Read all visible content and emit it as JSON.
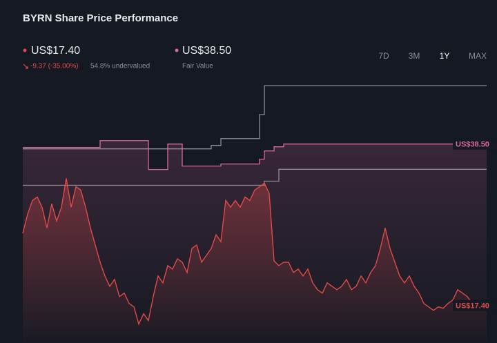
{
  "header": {
    "title": "BYRN Share Price Performance",
    "price": "US$17.40",
    "change": "-9.37 (-35.00%)",
    "valuation": "54.8% undervalued",
    "fair_value": "US$38.50",
    "fair_value_label": "Fair Value",
    "ranges": [
      "7D",
      "3M",
      "1Y",
      "MAX"
    ],
    "active_range": "1Y"
  },
  "chart_data": {
    "type": "line",
    "ylim": [
      12.5,
      46.5
    ],
    "series": [
      {
        "color": "#8a8f98",
        "style": "step",
        "values": [
          37.87,
          37.87,
          37.87,
          37.87,
          37.87,
          37.87,
          37.87,
          37.87,
          37.87,
          37.87,
          37.87,
          37.87,
          37.87,
          37.87,
          37.87,
          37.87,
          37.87,
          37.87,
          37.87,
          37.87,
          37.87,
          37.87,
          37.87,
          37.87,
          37.87,
          37.87,
          37.87,
          37.87,
          37.87,
          37.87,
          37.87,
          37.87,
          37.87,
          37.87,
          37.87,
          37.87,
          37.87,
          37.87,
          37.87,
          38.32,
          38.32,
          39.21,
          39.21,
          39.21,
          39.21,
          39.21,
          39.21,
          39.21,
          39.21,
          42.35,
          46.13,
          46.13,
          46.13,
          46.13,
          46.13,
          46.13,
          46.13,
          46.13,
          46.13,
          46.13,
          46.13,
          46.13,
          46.13,
          46.13,
          46.13,
          46.13,
          46.13,
          46.13,
          46.13,
          46.13,
          46.13,
          46.13,
          46.13,
          46.13,
          46.13,
          46.13,
          46.13,
          46.13,
          46.13,
          46.13,
          46.13,
          46.13,
          46.13,
          46.13,
          46.13,
          46.13,
          46.13,
          46.13,
          46.13,
          46.13,
          46.13,
          46.13,
          46.13,
          46.13,
          46.13,
          46.13,
          46.13
        ]
      },
      {
        "color": "#8a8f98",
        "style": "step",
        "values": [
          33.11,
          33.11,
          33.11,
          33.11,
          33.11,
          33.11,
          33.11,
          33.11,
          33.11,
          33.11,
          33.11,
          33.11,
          33.11,
          33.11,
          33.11,
          33.11,
          33.11,
          33.11,
          33.11,
          33.11,
          33.11,
          33.11,
          33.11,
          33.11,
          33.11,
          33.11,
          33.11,
          33.11,
          33.11,
          33.11,
          33.11,
          33.11,
          33.11,
          33.11,
          33.11,
          33.11,
          33.11,
          33.11,
          33.11,
          33.11,
          33.11,
          33.11,
          33.11,
          33.11,
          33.11,
          33.11,
          33.11,
          33.11,
          33.11,
          33.11,
          33.65,
          33.65,
          33.65,
          35.2,
          35.2,
          35.2,
          35.2,
          35.2,
          35.2,
          35.2,
          35.2,
          35.2,
          35.2,
          35.2,
          35.2,
          35.2,
          35.2,
          35.2,
          35.2,
          35.2,
          35.2,
          35.2,
          35.2,
          35.2,
          35.2,
          35.2,
          35.2,
          35.2,
          35.2,
          35.2,
          35.2,
          35.2,
          35.2,
          35.2,
          35.2,
          35.2,
          35.2,
          35.2,
          35.2,
          35.2,
          35.2,
          35.2,
          35.2,
          35.2,
          35.2,
          35.2,
          35.2
        ]
      },
      {
        "color": "#d9699a",
        "style": "step",
        "fill": true,
        "values": [
          38.05,
          38.05,
          38.05,
          38.05,
          38.05,
          38.05,
          38.05,
          38.05,
          38.05,
          38.05,
          38.05,
          38.05,
          38.05,
          38.05,
          38.05,
          38.05,
          38.95,
          38.95,
          38.95,
          38.95,
          38.95,
          38.95,
          38.95,
          38.95,
          38.95,
          38.95,
          35.17,
          35.17,
          35.17,
          35.17,
          38.5,
          38.5,
          38.5,
          35.62,
          35.62,
          35.62,
          35.62,
          35.62,
          35.62,
          35.62,
          35.62,
          35.89,
          35.89,
          35.89,
          35.89,
          35.89,
          35.89,
          35.89,
          35.89,
          36.52,
          37.6,
          37.6,
          38.14,
          38.14,
          38.5,
          38.5,
          38.5,
          38.5,
          38.5,
          38.5,
          38.5,
          38.5,
          38.5,
          38.5,
          38.5,
          38.5,
          38.5,
          38.5,
          38.5,
          38.5,
          38.5,
          38.5,
          38.5,
          38.5,
          38.5,
          38.5,
          38.5,
          38.5,
          38.5,
          38.5,
          38.5,
          38.5,
          38.5,
          38.5,
          38.5,
          38.5,
          38.5,
          38.5,
          38.5,
          38.5,
          38.5,
          38.5,
          38.5,
          38.5,
          38.5,
          38.5,
          38.5
        ]
      },
      {
        "color": "#e04a4a",
        "style": "line",
        "fill": true,
        "values": [
          26.83,
          29.34,
          31.13,
          31.58,
          30.24,
          27.54,
          30.69,
          28.44,
          30.24,
          34.01,
          30.24,
          32.93,
          32.48,
          30.24,
          27.54,
          25.3,
          23.06,
          21.26,
          19.91,
          20.81,
          18.57,
          19.02,
          17.67,
          17.22,
          14.98,
          16.32,
          15.43,
          18.57,
          21.26,
          20.36,
          22.61,
          22.16,
          23.5,
          23.06,
          21.71,
          24.85,
          25.3,
          23.06,
          23.95,
          24.85,
          26.65,
          25.75,
          31.13,
          30.24,
          31.13,
          30.24,
          31.58,
          31.13,
          32.48,
          32.93,
          33.38,
          32.03,
          23.23,
          22.61,
          23.06,
          23.06,
          21.71,
          22.16,
          21.26,
          22.16,
          20.36,
          19.46,
          19.02,
          20.36,
          19.91,
          19.46,
          19.91,
          20.81,
          19.46,
          19.91,
          21.26,
          20.36,
          21.71,
          22.61,
          24.85,
          27.54,
          24.85,
          23.06,
          21.26,
          20.36,
          21.26,
          19.91,
          19.02,
          17.67,
          17.22,
          16.77,
          17.22,
          17.04,
          17.67,
          18.12,
          19.46,
          19.02,
          18.57,
          17.67,
          17.22,
          16.77,
          17.4
        ]
      }
    ]
  }
}
